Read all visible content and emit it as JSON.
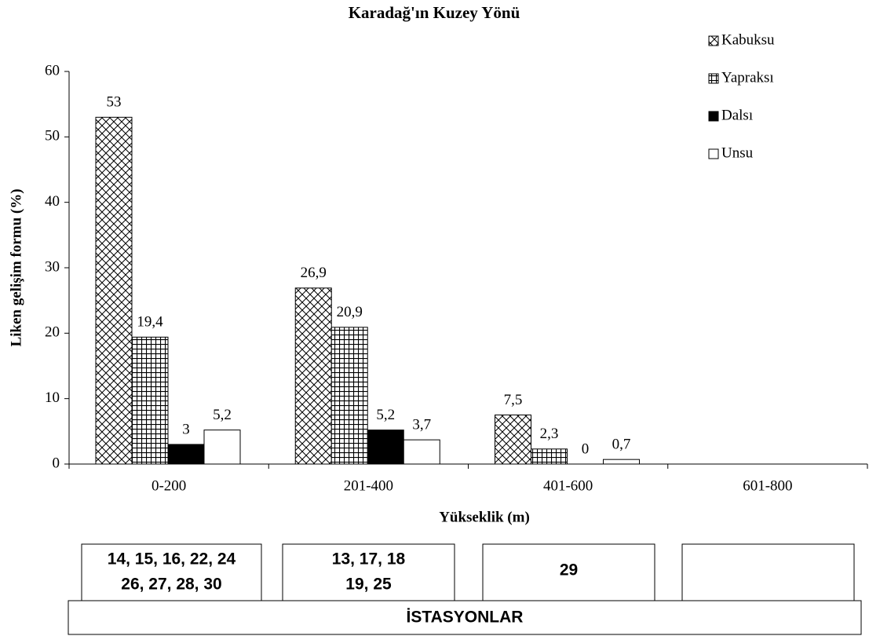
{
  "chart_data": {
    "type": "bar",
    "title": "Karadağ'ın Kuzey Yönü",
    "xlabel": "Yükseklik (m)",
    "ylabel": "Liken gelişim formu (%)",
    "categories": [
      "0-200",
      "201-400",
      "401-600",
      "601-800"
    ],
    "series": [
      {
        "name": "Kabuksu",
        "color": "#000000",
        "pattern": "crosshatch",
        "values": [
          53,
          26.9,
          7.5,
          null
        ],
        "value_labels": [
          "53",
          "26,9",
          "7,5",
          null
        ]
      },
      {
        "name": "Yapraksı",
        "color": "#000000",
        "pattern": "grid",
        "values": [
          19.4,
          20.9,
          2.3,
          null
        ],
        "value_labels": [
          "19,4",
          "20,9",
          "2,3",
          null
        ]
      },
      {
        "name": "Dalsı",
        "color": "#000000",
        "values": [
          3,
          5.2,
          0,
          null
        ],
        "value_labels": [
          "3",
          "5,2",
          "0",
          null
        ]
      },
      {
        "name": "Unsu",
        "color": "#ffffff",
        "values": [
          5.2,
          3.7,
          0.7,
          null
        ],
        "value_labels": [
          "5,2",
          "3,7",
          "0,7",
          null
        ]
      }
    ],
    "ylim": [
      0,
      60
    ],
    "yticks": [
      0,
      10,
      20,
      30,
      40,
      50,
      60
    ],
    "grid": false,
    "legend": "top-right"
  },
  "stations": {
    "title": "İSTASYONLAR",
    "groups": [
      [
        "14, 15, 16, 22, 24",
        "26, 27, 28, 30"
      ],
      [
        "13, 17, 18",
        "19, 25"
      ],
      [
        "29"
      ],
      []
    ]
  }
}
